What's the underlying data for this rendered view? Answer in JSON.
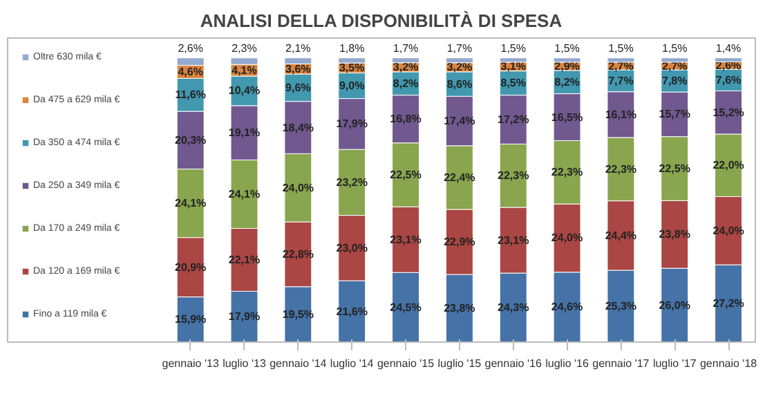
{
  "chart_data": {
    "type": "bar",
    "stacked": true,
    "title": "ANALISI DELLA DISPONIBILITÀ DI SPESA",
    "categories": [
      "gennaio '13",
      "luglio '13",
      "gennaio '14",
      "luglio '14",
      "gennaio '15",
      "luglio '15",
      "gennaio '16",
      "luglio '16",
      "gennaio '17",
      "luglio '17",
      "gennaio '18"
    ],
    "legend": "left",
    "series": [
      {
        "name": "Fino a 119 mila €",
        "color": "#4572a7",
        "values": [
          15.9,
          17.9,
          19.5,
          21.6,
          24.5,
          23.8,
          24.3,
          24.6,
          25.3,
          26.0,
          27.2
        ],
        "value_labels": [
          "15,9%",
          "17,9%",
          "19,5%",
          "21,6%",
          "24,5%",
          "23,8%",
          "24,3%",
          "24,6%",
          "25,3%",
          "26,0%",
          "27,2%"
        ]
      },
      {
        "name": "Da 120 a 169 mila €",
        "color": "#aa4643",
        "values": [
          20.9,
          22.1,
          22.8,
          23.0,
          23.1,
          22.9,
          23.1,
          24.0,
          24.4,
          23.8,
          24.0
        ],
        "value_labels": [
          "20,9%",
          "22,1%",
          "22,8%",
          "23,0%",
          "23,1%",
          "22,9%",
          "23,1%",
          "24,0%",
          "24,4%",
          "23,8%",
          "24,0%"
        ]
      },
      {
        "name": "Da 170 a 249 mila €",
        "color": "#89a54e",
        "values": [
          24.1,
          24.1,
          24.0,
          23.2,
          22.5,
          22.4,
          22.3,
          22.3,
          22.3,
          22.5,
          22.0
        ],
        "value_labels": [
          "24,1%",
          "24,1%",
          "24,0%",
          "23,2%",
          "22,5%",
          "22,4%",
          "22,3%",
          "22,3%",
          "22,3%",
          "22,5%",
          "22,0%"
        ]
      },
      {
        "name": "Da 250 a 349 mila €",
        "color": "#71588f",
        "values": [
          20.3,
          19.1,
          18.4,
          17.9,
          16.8,
          17.4,
          17.2,
          16.5,
          16.1,
          15.7,
          15.2
        ],
        "value_labels": [
          "20,3%",
          "19,1%",
          "18,4%",
          "17,9%",
          "16,8%",
          "17,4%",
          "17,2%",
          "16,5%",
          "16,1%",
          "15,7%",
          "15,2%"
        ]
      },
      {
        "name": "Da 350 a 474 mila €",
        "color": "#4198af",
        "values": [
          11.6,
          10.4,
          9.6,
          9.0,
          8.2,
          8.6,
          8.5,
          8.2,
          7.7,
          7.8,
          7.6
        ],
        "value_labels": [
          "11,6%",
          "10,4%",
          "9,6%",
          "9,0%",
          "8,2%",
          "8,6%",
          "8,5%",
          "8,2%",
          "7,7%",
          "7,8%",
          "7,6%"
        ]
      },
      {
        "name": "Da 475 a 629 mila €",
        "color": "#db843d",
        "values": [
          4.6,
          4.1,
          3.6,
          3.5,
          3.2,
          3.2,
          3.1,
          2.9,
          2.7,
          2.7,
          2.6
        ],
        "value_labels": [
          "4,6%",
          "4,1%",
          "3,6%",
          "3,5%",
          "3,2%",
          "3,2%",
          "3,1%",
          "2,9%",
          "2,7%",
          "2,7%",
          "2,6%"
        ]
      },
      {
        "name": "Oltre 630 mila €",
        "color": "#93a9cf",
        "values": [
          2.6,
          2.3,
          2.1,
          1.8,
          1.7,
          1.7,
          1.5,
          1.5,
          1.5,
          1.5,
          1.4
        ],
        "value_labels": [
          "2,6%",
          "2,3%",
          "2,1%",
          "1,8%",
          "1,7%",
          "1,7%",
          "1,5%",
          "1,5%",
          "1,5%",
          "1,5%",
          "1,4%"
        ]
      }
    ]
  }
}
